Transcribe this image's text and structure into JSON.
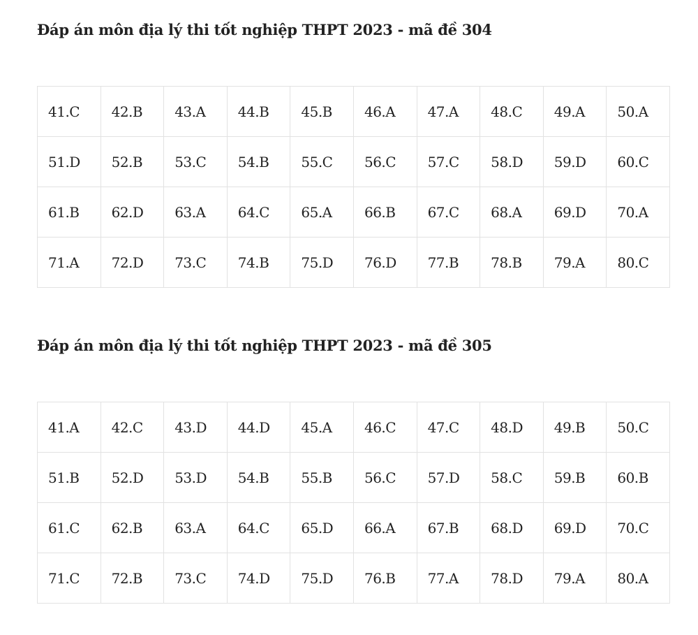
{
  "sections": [
    {
      "title": "Đáp án môn địa lý thi tốt nghiệp THPT 2023 - mã đề 304",
      "rows": [
        [
          "41.C",
          "42.B",
          "43.A",
          "44.B",
          "45.B",
          "46.A",
          "47.A",
          "48.C",
          "49.A",
          "50.A"
        ],
        [
          "51.D",
          "52.B",
          "53.C",
          "54.B",
          "55.C",
          "56.C",
          "57.C",
          "58.D",
          "59.D",
          "60.C"
        ],
        [
          "61.B",
          "62.D",
          "63.A",
          "64.C",
          "65.A",
          "66.B",
          "67.C",
          "68.A",
          "69.D",
          "70.A"
        ],
        [
          "71.A",
          "72.D",
          "73.C",
          "74.B",
          "75.D",
          "76.D",
          "77.B",
          "78.B",
          "79.A",
          "80.C"
        ]
      ]
    },
    {
      "title": "Đáp án môn địa lý thi tốt nghiệp THPT 2023 - mã đề 305",
      "rows": [
        [
          "41.A",
          "42.C",
          "43.D",
          "44.D",
          "45.A",
          "46.C",
          "47.C",
          "48.D",
          "49.B",
          "50.C"
        ],
        [
          "51.B",
          "52.D",
          "53.D",
          "54.B",
          "55.B",
          "56.C",
          "57.D",
          "58.C",
          "59.B",
          "60.B"
        ],
        [
          "61.C",
          "62.B",
          "63.A",
          "64.C",
          "65.D",
          "66.A",
          "67.B",
          "68.D",
          "69.D",
          "70.C"
        ],
        [
          "71.C",
          "72.B",
          "73.C",
          "74.D",
          "75.D",
          "76.B",
          "77.A",
          "78.D",
          "79.A",
          "80.A"
        ]
      ]
    }
  ]
}
